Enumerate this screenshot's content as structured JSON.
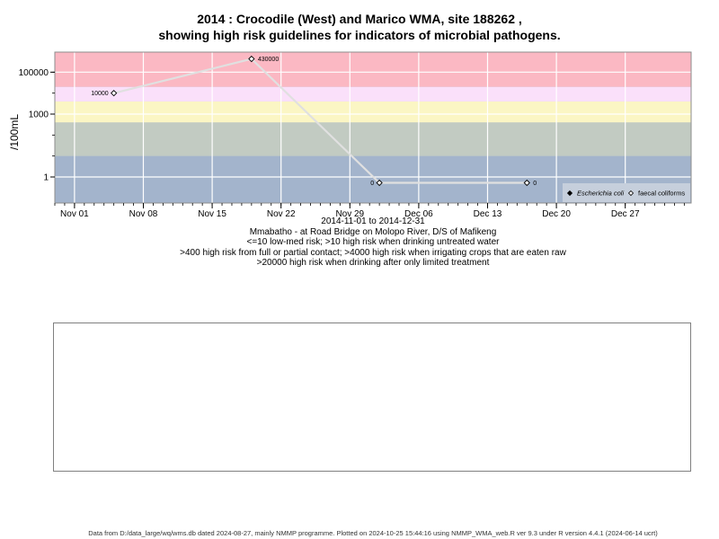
{
  "title_line1": "2014 : Crocodile (West) and Marico WMA, site 188262 ,",
  "title_line2": "showing high risk guidelines for indicators of microbial pathogens.",
  "caption": {
    "date_range": "2014-11-01 to 2014-12-31",
    "site": "Mmabatho - at Road Bridge on Molopo River, D/S of Mafikeng",
    "line1": "<=10 low-med risk; >10 high risk when drinking untreated water",
    "line2": ">400 high risk from full or partial contact; >4000 high risk when irrigating crops that are eaten raw",
    "line3": ">20000 high risk when drinking after only limited treatment"
  },
  "footer": "Data from D:/data_large/wq/wms.db dated 2024-08-27, mainly NMMP programme. Plotted on 2024-10-25 15:44:16 using NMMP_WMA_web.R ver 9.3 under R version 4.4.1 (2024-06-14 ucrt)",
  "chart_data": {
    "type": "line",
    "ylabel": "/100mL",
    "y_scale": "log10",
    "y_ticks": [
      1,
      1000,
      100000
    ],
    "y_tick_labels": [
      "1",
      "1000",
      "100000"
    ],
    "x_tick_labels": [
      "Nov 01",
      "Nov 08",
      "Nov 15",
      "Nov 22",
      "Nov 29",
      "Dec 06",
      "Dec 13",
      "Dec 20",
      "Dec 27"
    ],
    "x_tick_dates": [
      "2014-11-01",
      "2014-11-08",
      "2014-11-15",
      "2014-11-22",
      "2014-11-29",
      "2014-12-06",
      "2014-12-13",
      "2014-12-20",
      "2014-12-27"
    ],
    "xlim": [
      "2014-10-30",
      "2015-01-02"
    ],
    "risk_bands": [
      {
        "from": 10,
        "to": 400,
        "color": "#c2cbc2"
      },
      {
        "from": 400,
        "to": 4000,
        "color": "#fbf6c4"
      },
      {
        "from": 4000,
        "to": 20000,
        "color": "#fae0fa"
      },
      {
        "from": 20000,
        "to": null,
        "color": "#fbb8c3"
      }
    ],
    "below_band_color": "#a3b4cc",
    "grid": true,
    "legend_placement": "bottom-right",
    "legend": [
      {
        "label": "Escherichia coli",
        "marker": "filled-diamond"
      },
      {
        "label": "faecal coliforms",
        "marker": "open-diamond"
      }
    ],
    "series": [
      {
        "name": "faecal coliforms",
        "marker": "open-diamond",
        "line_color": "#e0e0e0",
        "points": [
          {
            "date": "2014-11-05",
            "value": 10000,
            "label": "10000",
            "label_side": "left"
          },
          {
            "date": "2014-11-19",
            "value": 430000,
            "label": "430000",
            "label_side": "right"
          },
          {
            "date": "2014-12-02",
            "value": 0,
            "label": "0",
            "label_side": "left"
          },
          {
            "date": "2014-12-17",
            "value": 0,
            "label": "0",
            "label_side": "right"
          }
        ]
      }
    ]
  }
}
